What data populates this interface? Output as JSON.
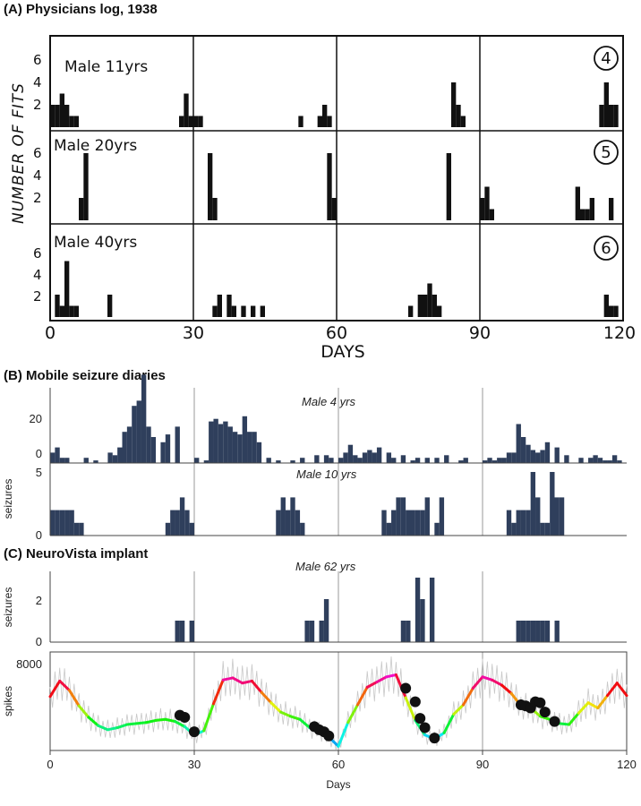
{
  "panel_titles": {
    "a": "(A)  Physicians log, 1938",
    "b": "(B)  Mobile seizure diaries",
    "c": "(C)  NeuroVista implant"
  },
  "panel_a": {
    "y_label": "NUMBER  OF  FITS",
    "x_label": "DAYS",
    "x_ticks": [
      "0",
      "30",
      "60",
      "90",
      "120"
    ],
    "y_ticks": [
      "2",
      "4",
      "6"
    ],
    "subplots": [
      {
        "label": "Male  11yrs",
        "number": "4"
      },
      {
        "label": "Male  20yrs",
        "number": "5"
      },
      {
        "label": "Male  40yrs",
        "number": "6"
      }
    ]
  },
  "panel_b": {
    "y_label": "seizures",
    "subplots": [
      {
        "label": "Male 4 yrs",
        "y_ticks": [
          "0",
          "20"
        ]
      },
      {
        "label": "Male 10 yrs",
        "y_ticks": [
          "0",
          "5"
        ]
      }
    ]
  },
  "panel_c": {
    "label": "Male 62 yrs",
    "seizure_y_label": "seizures",
    "seizure_y_ticks": [
      "0",
      "2"
    ],
    "spike_y_label": "spikes",
    "spike_y_ticks": [
      "8000"
    ],
    "x_ticks": [
      "0",
      "30",
      "60",
      "90",
      "120"
    ],
    "x_label": "Days"
  },
  "chart_data": [
    {
      "type": "bar",
      "xlabel": "DAYS",
      "ylabel": "NUMBER OF FITS",
      "xlim": [
        0,
        120
      ],
      "ylim": [
        0,
        8
      ],
      "color": "#111111",
      "series": [
        {
          "name": "Male  11yrs",
          "x": [
            0,
            1,
            2,
            3,
            4,
            5,
            27,
            28,
            29,
            30,
            31,
            52,
            56,
            57,
            58,
            84,
            85,
            86,
            115,
            116,
            117,
            118
          ],
          "values": [
            2,
            2,
            3,
            2,
            1,
            1,
            1,
            3,
            1,
            1,
            1,
            1,
            1,
            2,
            1,
            4,
            2,
            1,
            2,
            4,
            2,
            2
          ]
        },
        {
          "name": "Male  20yrs",
          "x": [
            6,
            7,
            33,
            34,
            58,
            59,
            83,
            90,
            91,
            92,
            110,
            111,
            112,
            113,
            117
          ],
          "values": [
            2,
            6,
            6,
            2,
            6,
            2,
            6,
            2,
            3,
            1,
            3,
            1,
            1,
            2,
            2
          ]
        },
        {
          "name": "Male  40yrs",
          "x": [
            1,
            2,
            3,
            4,
            5,
            12,
            34,
            35,
            37,
            38,
            40,
            42,
            44,
            75,
            77,
            78,
            79,
            80,
            81,
            116,
            117,
            118
          ],
          "values": [
            2,
            1,
            5,
            1,
            1,
            2,
            1,
            2,
            2,
            1,
            1,
            1,
            1,
            1,
            2,
            2,
            3,
            2,
            1,
            2,
            1,
            1
          ]
        }
      ]
    },
    {
      "type": "bar",
      "ylabel": "seizures",
      "xlim": [
        0,
        120
      ],
      "color": "#2f3f5c",
      "series": [
        {
          "name": "Male 4 yrs",
          "ylim": [
            0,
            35
          ],
          "x": [
            0,
            1,
            2,
            3,
            7,
            9,
            12,
            13,
            14,
            15,
            16,
            17,
            18,
            19,
            20,
            21,
            23,
            24,
            26,
            30,
            32,
            33,
            34,
            35,
            36,
            37,
            38,
            39,
            40,
            41,
            42,
            43,
            45,
            47,
            50,
            52,
            55,
            57,
            58,
            60,
            61,
            62,
            63,
            64,
            65,
            66,
            67,
            68,
            70,
            71,
            73,
            75,
            76,
            78,
            80,
            82,
            85,
            86,
            90,
            91,
            92,
            93,
            94,
            95,
            96,
            97,
            98,
            99,
            100,
            101,
            102,
            103,
            105,
            107,
            110,
            112,
            113,
            114,
            115,
            116,
            117,
            118
          ],
          "values": [
            4,
            6,
            2,
            2,
            2,
            1,
            4,
            3,
            6,
            12,
            14,
            22,
            24,
            34,
            14,
            10,
            8,
            11,
            14,
            2,
            1,
            16,
            17,
            15,
            16,
            14,
            12,
            11,
            18,
            12,
            12,
            8,
            2,
            1,
            1,
            2,
            3,
            3,
            2,
            2,
            4,
            7,
            3,
            2,
            4,
            5,
            4,
            6,
            4,
            2,
            3,
            1,
            2,
            2,
            2,
            3,
            1,
            2,
            1,
            2,
            1,
            2,
            2,
            4,
            4,
            15,
            10,
            7,
            5,
            4,
            5,
            8,
            6,
            3,
            2,
            2,
            3,
            2,
            1,
            1,
            3,
            1
          ]
        },
        {
          "name": "Male 10 yrs",
          "ylim": [
            0,
            5
          ],
          "x": [
            0,
            1,
            2,
            3,
            4,
            5,
            6,
            24,
            25,
            26,
            27,
            28,
            29,
            47,
            48,
            49,
            50,
            51,
            52,
            69,
            70,
            71,
            72,
            73,
            74,
            75,
            76,
            77,
            78,
            80,
            81,
            95,
            96,
            97,
            98,
            99,
            100,
            101,
            102,
            103,
            104,
            105,
            106
          ],
          "values": [
            2,
            2,
            2,
            2,
            2,
            1,
            1,
            1,
            2,
            2,
            3,
            2,
            1,
            2,
            3,
            2,
            3,
            2,
            1,
            2,
            1,
            2,
            3,
            3,
            2,
            2,
            2,
            2,
            3,
            1,
            3,
            2,
            1,
            2,
            2,
            2,
            5,
            3,
            1,
            1,
            5,
            3,
            3
          ]
        }
      ]
    },
    {
      "type": "bar",
      "title": "Male 62 yrs",
      "ylabel": "seizures",
      "xlim": [
        0,
        120
      ],
      "ylim": [
        0,
        3
      ],
      "color": "#2f3f5c",
      "x": [
        26,
        27,
        29,
        53,
        54,
        56,
        57,
        73,
        74,
        76,
        77,
        79,
        97,
        98,
        99,
        100,
        101,
        102,
        103,
        105
      ],
      "values": [
        1,
        1,
        1,
        1,
        1,
        1,
        2,
        1,
        1,
        3,
        2,
        3,
        1,
        1,
        1,
        1,
        1,
        1,
        1,
        1
      ]
    },
    {
      "type": "line",
      "ylabel": "spikes",
      "xlabel": "Days",
      "xlim": [
        0,
        120
      ],
      "ylim": [
        0,
        9500
      ],
      "x": [
        0,
        2,
        4,
        6,
        8,
        10,
        12,
        14,
        16,
        18,
        20,
        22,
        24,
        26,
        28,
        30,
        32,
        34,
        36,
        38,
        40,
        42,
        44,
        46,
        48,
        50,
        52,
        54,
        56,
        58,
        60,
        62,
        64,
        66,
        68,
        70,
        72,
        74,
        76,
        78,
        80,
        82,
        84,
        86,
        88,
        90,
        92,
        94,
        96,
        98,
        100,
        102,
        104,
        106,
        108,
        110,
        112,
        114,
        116,
        118,
        120
      ],
      "y": [
        5200,
        6700,
        5800,
        4300,
        3200,
        2400,
        2000,
        2200,
        2500,
        2600,
        2700,
        2900,
        3000,
        2800,
        2300,
        1500,
        1900,
        4500,
        6800,
        7000,
        6500,
        6700,
        5600,
        4600,
        3700,
        3300,
        3000,
        2200,
        1900,
        1300,
        400,
        2700,
        4400,
        6100,
        6600,
        7100,
        7300,
        5100,
        2900,
        1500,
        1100,
        1700,
        3500,
        4400,
        6000,
        7100,
        6800,
        6300,
        5500,
        4300,
        4100,
        3300,
        3000,
        2600,
        2500,
        3600,
        4600,
        4100,
        5300,
        6500,
        5300
      ],
      "series": [
        {
          "name": "spike markers",
          "x": [
            27,
            28,
            30,
            55,
            56,
            57,
            58,
            74,
            76,
            77,
            78,
            80,
            98,
            99,
            100,
            101,
            102,
            103,
            105
          ],
          "y": [
            3400,
            3200,
            1800,
            2300,
            2000,
            1800,
            1400,
            6000,
            4700,
            3100,
            2200,
            1200,
            4400,
            4300,
            4100,
            4700,
            4600,
            3700,
            2800
          ]
        }
      ]
    }
  ]
}
